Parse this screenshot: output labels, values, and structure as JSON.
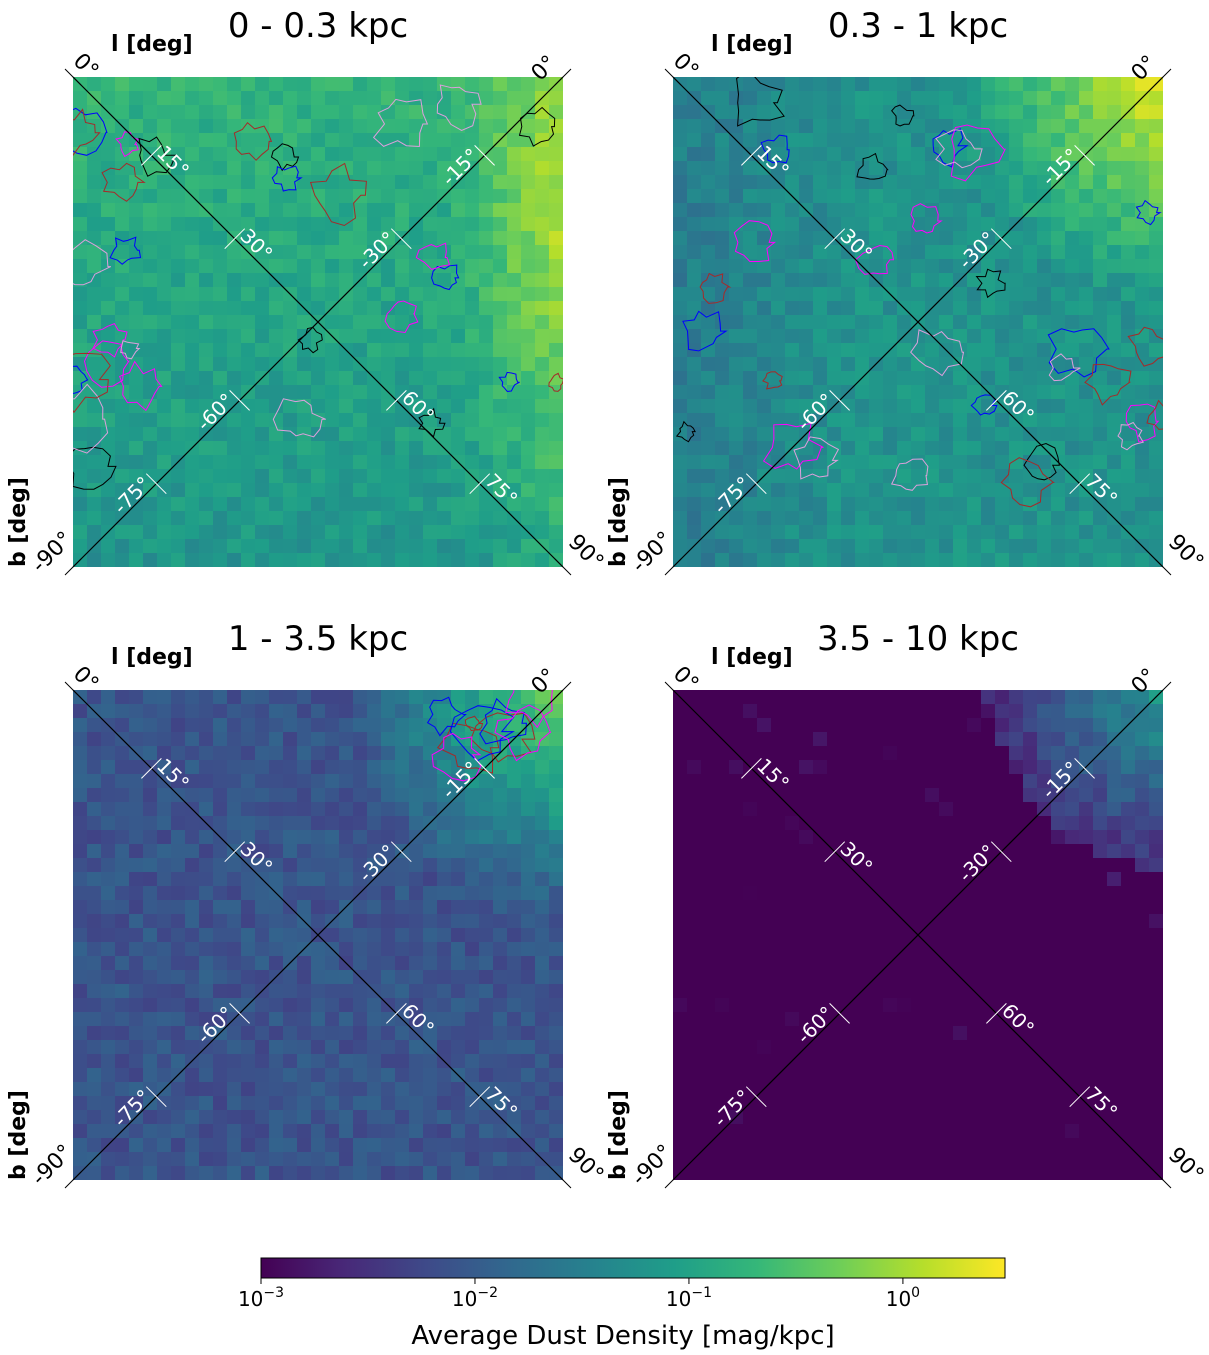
{
  "figure": {
    "colormap": "viridis",
    "colormap_stops": [
      "#440154",
      "#482878",
      "#3e4a89",
      "#31688e",
      "#26828e",
      "#1f9e89",
      "#35b779",
      "#6ece58",
      "#b5de2b",
      "#fde725"
    ]
  },
  "chart_data": [
    {
      "type": "heatmap",
      "title": "0 - 0.3 kpc",
      "xlabel": "l [deg]",
      "ylabel": "b [deg]",
      "corner_labels": {
        "top_left": "0°",
        "top_right": "0°",
        "bottom_left": "-90°",
        "bottom_right": "90°"
      },
      "grid_labels_diag_down": [
        "15°",
        "30°",
        "60°",
        "75°"
      ],
      "grid_labels_diag_up": [
        "-15°",
        "-30°",
        "-60°",
        "-75°"
      ],
      "mean_density_level": 0.12,
      "hotspot": "right edge",
      "contours": [
        "black",
        "blue",
        "magenta",
        "plum",
        "brown"
      ]
    },
    {
      "type": "heatmap",
      "title": "0.3 - 1 kpc",
      "xlabel": "l [deg]",
      "ylabel": "b [deg]",
      "corner_labels": {
        "top_left": "0°",
        "top_right": "0°",
        "bottom_left": "-90°",
        "bottom_right": "90°"
      },
      "grid_labels_diag_down": [
        "15°",
        "30°",
        "60°",
        "75°"
      ],
      "grid_labels_diag_up": [
        "-15°",
        "-30°",
        "-60°",
        "-75°"
      ],
      "mean_density_level": 0.06,
      "hotspot": "top-right corner",
      "contours": [
        "black",
        "blue",
        "magenta",
        "plum",
        "brown"
      ]
    },
    {
      "type": "heatmap",
      "title": "1 - 3.5 kpc",
      "xlabel": "l [deg]",
      "ylabel": "b [deg]",
      "corner_labels": {
        "top_left": "0°",
        "top_right": "0°",
        "bottom_left": "-90°",
        "bottom_right": "90°"
      },
      "grid_labels_diag_down": [
        "15°",
        "30°",
        "60°",
        "75°"
      ],
      "grid_labels_diag_up": [
        "-15°",
        "-30°",
        "-60°",
        "-75°"
      ],
      "mean_density_level": 0.008,
      "hotspot": "top-right corner",
      "contours": [
        "brown",
        "blue",
        "magenta"
      ]
    },
    {
      "type": "heatmap",
      "title": "3.5 - 10 kpc",
      "xlabel": "l [deg]",
      "ylabel": "b [deg]",
      "corner_labels": {
        "top_left": "0°",
        "top_right": "0°",
        "bottom_left": "-90°",
        "bottom_right": "90°"
      },
      "grid_labels_diag_down": [
        "15°",
        "30°",
        "60°",
        "75°"
      ],
      "grid_labels_diag_up": [
        "-15°",
        "-30°",
        "-60°",
        "-75°"
      ],
      "mean_density_level": 0.001,
      "hotspot": "top-right corner",
      "contours": []
    }
  ],
  "colorbar": {
    "label": "Average Dust Density [mag/kpc]",
    "scale": "log",
    "range": [
      0.001,
      3
    ],
    "ticks": [
      {
        "value": 0.001,
        "base": "10",
        "exp": "−3"
      },
      {
        "value": 0.01,
        "base": "10",
        "exp": "−2"
      },
      {
        "value": 0.1,
        "base": "10",
        "exp": "−1"
      },
      {
        "value": 1,
        "base": "10",
        "exp": "0"
      }
    ]
  }
}
